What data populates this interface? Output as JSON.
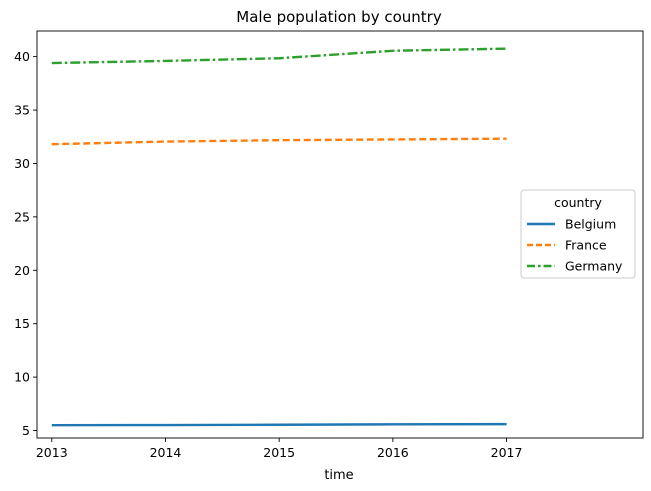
{
  "chart_data": {
    "type": "line",
    "title": "Male population by country",
    "xlabel": "time",
    "ylabel": "",
    "x": [
      2013,
      2014,
      2015,
      2016,
      2017
    ],
    "xlim": [
      2012.87,
      2018.2
    ],
    "ylim": [
      4.3,
      42.4
    ],
    "xticks": [
      2013,
      2014,
      2015,
      2016,
      2017
    ],
    "yticks": [
      5,
      10,
      15,
      20,
      25,
      30,
      35,
      40
    ],
    "grid": false,
    "legend": {
      "title": "country",
      "placement": "center-right"
    },
    "series": [
      {
        "name": "Belgium",
        "values": [
          5.5,
          5.51,
          5.54,
          5.58,
          5.6
        ],
        "color": "#1f77b4",
        "style": "solid"
      },
      {
        "name": "France",
        "values": [
          31.8,
          32.05,
          32.18,
          32.25,
          32.32
        ],
        "color": "#ff7f0e",
        "style": "dashed"
      },
      {
        "name": "Germany",
        "values": [
          39.4,
          39.6,
          39.85,
          40.55,
          40.75
        ],
        "color": "#2ca02c",
        "style": "dashdot"
      }
    ]
  }
}
